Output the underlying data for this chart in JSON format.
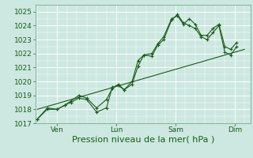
{
  "title": "",
  "xlabel": "Pression niveau de la mer( hPa )",
  "ylabel": "",
  "bg_color": "#cce8e0",
  "grid_color": "#ffffff",
  "line_color": "#1a5c1a",
  "ylim": [
    1017,
    1025.5
  ],
  "yticks": [
    1017,
    1018,
    1019,
    1020,
    1021,
    1022,
    1023,
    1024,
    1025
  ],
  "day_labels": [
    "Ven",
    "Lun",
    "Sam",
    "Dim"
  ],
  "day_positions": [
    1,
    4,
    7,
    10
  ],
  "day_lines": [
    1,
    4,
    7,
    10
  ],
  "series1_x": [
    0,
    0.5,
    1.0,
    1.4,
    1.7,
    2.1,
    2.5,
    3.0,
    3.5,
    3.8,
    4.1,
    4.4,
    4.8,
    5.1,
    5.4,
    5.8,
    6.1,
    6.4,
    6.8,
    7.1,
    7.4,
    7.7,
    8.0,
    8.3,
    8.6,
    8.9,
    9.2,
    9.5,
    9.8,
    10.1
  ],
  "series1_y": [
    1017.3,
    1018.1,
    1018.0,
    1018.3,
    1018.6,
    1019.0,
    1018.8,
    1018.1,
    1018.7,
    1019.5,
    1019.8,
    1019.4,
    1020.0,
    1021.5,
    1021.9,
    1022.0,
    1022.7,
    1023.2,
    1024.5,
    1024.7,
    1024.1,
    1024.5,
    1024.1,
    1023.3,
    1023.3,
    1023.8,
    1024.1,
    1022.5,
    1022.3,
    1022.8
  ],
  "series2_x": [
    0,
    0.5,
    1.0,
    1.4,
    1.7,
    2.1,
    2.5,
    3.0,
    3.5,
    3.8,
    4.1,
    4.4,
    4.8,
    5.1,
    5.4,
    5.8,
    6.1,
    6.4,
    6.8,
    7.1,
    7.4,
    7.7,
    8.0,
    8.3,
    8.6,
    8.9,
    9.2,
    9.5,
    9.8,
    10.1
  ],
  "series2_y": [
    1017.3,
    1018.0,
    1018.0,
    1018.3,
    1018.5,
    1018.8,
    1018.7,
    1017.8,
    1018.1,
    1019.6,
    1019.7,
    1019.4,
    1019.8,
    1021.1,
    1021.9,
    1021.8,
    1022.6,
    1023.0,
    1024.4,
    1024.8,
    1024.2,
    1024.0,
    1023.8,
    1023.2,
    1023.0,
    1023.5,
    1024.0,
    1022.1,
    1021.9,
    1022.5
  ],
  "trend_x": [
    0,
    10.5
  ],
  "trend_y": [
    1018.0,
    1022.3
  ],
  "xlim": [
    -0.1,
    10.8
  ],
  "xlabel_fontsize": 8,
  "tick_fontsize": 6.5
}
